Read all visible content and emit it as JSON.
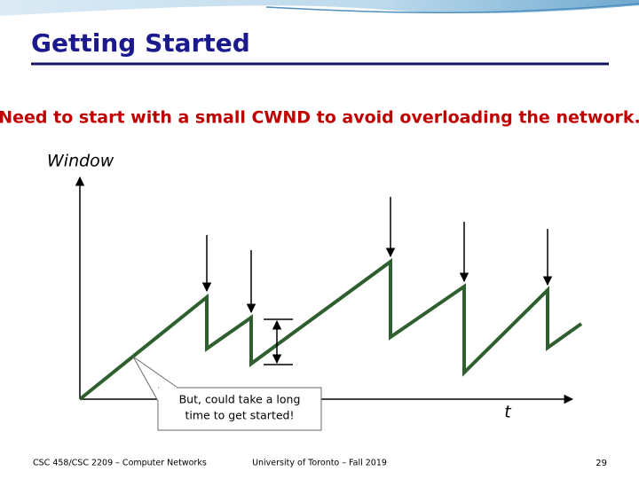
{
  "header": {
    "title": "Getting Started"
  },
  "body": {
    "statement": "Need to start with a small CWND to avoid overloading the network."
  },
  "diagram": {
    "y_axis_label": "Window",
    "x_axis_label": "t",
    "callout": [
      "But, could take a long",
      "time to get started!"
    ]
  },
  "footer": {
    "course": "CSC 458/CSC 2209 – Computer Networks",
    "institution": "University of Toronto – Fall 2019",
    "page": "29"
  }
}
